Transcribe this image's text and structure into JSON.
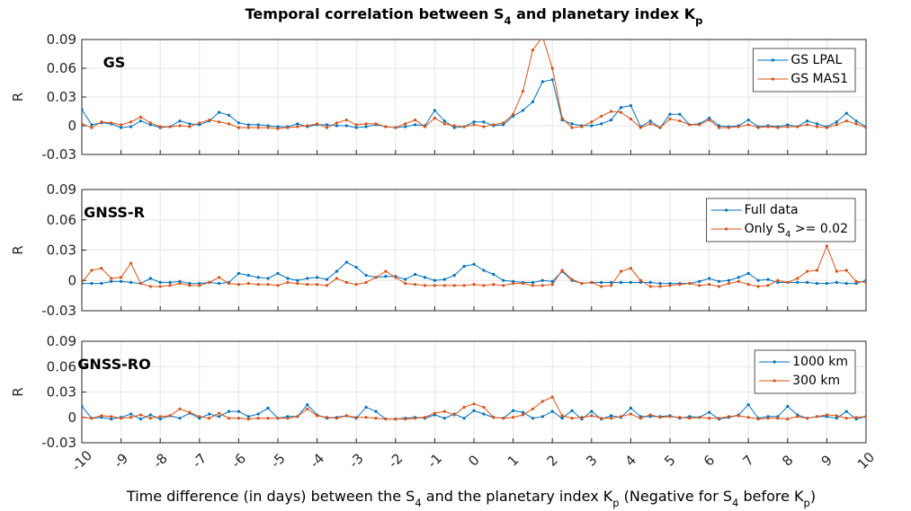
{
  "title": "Temporal correlation between S_4 and planetary index K_p",
  "xlabel": "Time difference (in days) between the S_4 and the planetary index K_p (Negative for S_4 before K_p)",
  "chart_data": [
    {
      "type": "line",
      "label": "GS",
      "ylabel": "R",
      "legend": "upper right",
      "grid": true,
      "xlim": [
        -10,
        10
      ],
      "ylim": [
        -0.03,
        0.09
      ],
      "xticks": [
        -10,
        -9,
        -8,
        -7,
        -6,
        -5,
        -4,
        -3,
        -2,
        -1,
        0,
        1,
        2,
        3,
        4,
        5,
        6,
        7,
        8,
        9,
        10
      ],
      "yticks": [
        -0.03,
        0,
        0.03,
        0.06,
        0.09
      ],
      "x": [
        -10,
        -9.75,
        -9.5,
        -9.25,
        -9,
        -8.75,
        -8.5,
        -8.25,
        -8,
        -7.75,
        -7.5,
        -7.25,
        -7,
        -6.75,
        -6.5,
        -6.25,
        -6,
        -5.75,
        -5.5,
        -5.25,
        -5,
        -4.75,
        -4.5,
        -4.25,
        -4,
        -3.75,
        -3.5,
        -3.25,
        -3,
        -2.75,
        -2.5,
        -2.25,
        -2,
        -1.75,
        -1.5,
        -1.25,
        -1,
        -0.75,
        -0.5,
        -0.25,
        0,
        0.25,
        0.5,
        0.75,
        1,
        1.25,
        1.5,
        1.75,
        2,
        2.25,
        2.5,
        2.75,
        3,
        3.25,
        3.5,
        3.75,
        4,
        4.25,
        4.5,
        4.75,
        5,
        5.25,
        5.5,
        5.75,
        6,
        6.25,
        6.5,
        6.75,
        7,
        7.25,
        7.5,
        7.75,
        8,
        8.25,
        8.5,
        8.75,
        9,
        9.25,
        9.5,
        9.75,
        10
      ],
      "series": [
        {
          "name": "GS LPAL",
          "color": "#0072BD",
          "values": [
            0.017,
            0.001,
            0.003,
            0.002,
            -0.002,
            -0.001,
            0.005,
            0.001,
            -0.002,
            -0.001,
            0.005,
            0.002,
            0.001,
            0.005,
            0.014,
            0.011,
            0.003,
            0.001,
            0.001,
            0,
            -0.001,
            -0.001,
            0.002,
            -0.001,
            0.001,
            0.001,
            0,
            0,
            -0.002,
            -0.001,
            0.001,
            -0.001,
            -0.002,
            -0.001,
            0.001,
            0,
            0.016,
            0.005,
            -0.002,
            -0.001,
            0.004,
            0.004,
            0,
            0.001,
            0.01,
            0.016,
            0.025,
            0.046,
            0.048,
            0.006,
            0.002,
            0,
            0,
            0.002,
            0.006,
            0.019,
            0.021,
            -0.001,
            0.005,
            -0.002,
            0.012,
            0.012,
            0.001,
            0.002,
            0.008,
            0,
            -0.001,
            0,
            0.006,
            -0.001,
            0,
            -0.001,
            0.001,
            -0.001,
            0.005,
            0.002,
            -0.001,
            0.004,
            0.013,
            0.005,
            -0.001
          ]
        },
        {
          "name": "GS MAS1",
          "color": "#D95319",
          "values": [
            0.002,
            -0.002,
            0.004,
            0.003,
            0.001,
            0.004,
            0.009,
            0.003,
            -0.001,
            -0.001,
            0,
            -0.001,
            0.003,
            0.006,
            0.004,
            0.002,
            -0.002,
            -0.002,
            -0.002,
            -0.002,
            -0.003,
            -0.002,
            -0.001,
            0,
            0.002,
            -0.002,
            0.003,
            0.006,
            0.001,
            0.002,
            0.002,
            -0.001,
            -0.002,
            0.002,
            0.006,
            -0.001,
            0.008,
            0.002,
            0,
            -0.001,
            0.001,
            -0.001,
            0.001,
            0.003,
            0.012,
            0.036,
            0.079,
            0.093,
            0.06,
            0.008,
            -0.002,
            -0.001,
            0.004,
            0.01,
            0.015,
            0.014,
            0.007,
            -0.002,
            0.002,
            -0.002,
            0.007,
            0.005,
            0.001,
            0.001,
            0.006,
            -0.002,
            -0.002,
            -0.001,
            0.001,
            -0.002,
            -0.001,
            -0.002,
            -0.001,
            -0.001,
            0.001,
            -0.001,
            -0.002,
            0.001,
            0.005,
            0.002,
            -0.002
          ]
        }
      ]
    },
    {
      "type": "line",
      "label": "GNSS-R",
      "ylabel": "R",
      "legend": "upper right",
      "grid": true,
      "xlim": [
        -10,
        10
      ],
      "ylim": [
        -0.03,
        0.09
      ],
      "xticks": [
        -10,
        -9,
        -8,
        -7,
        -6,
        -5,
        -4,
        -3,
        -2,
        -1,
        0,
        1,
        2,
        3,
        4,
        5,
        6,
        7,
        8,
        9,
        10
      ],
      "yticks": [
        -0.03,
        0,
        0.03,
        0.06,
        0.09
      ],
      "x": [
        -10,
        -9.75,
        -9.5,
        -9.25,
        -9,
        -8.75,
        -8.5,
        -8.25,
        -8,
        -7.75,
        -7.5,
        -7.25,
        -7,
        -6.75,
        -6.5,
        -6.25,
        -6,
        -5.75,
        -5.5,
        -5.25,
        -5,
        -4.75,
        -4.5,
        -4.25,
        -4,
        -3.75,
        -3.5,
        -3.25,
        -3,
        -2.75,
        -2.5,
        -2.25,
        -2,
        -1.75,
        -1.5,
        -1.25,
        -1,
        -0.75,
        -0.5,
        -0.25,
        0,
        0.25,
        0.5,
        0.75,
        1,
        1.25,
        1.5,
        1.75,
        2,
        2.25,
        2.5,
        2.75,
        3,
        3.25,
        3.5,
        3.75,
        4,
        4.25,
        4.5,
        4.75,
        5,
        5.25,
        5.5,
        5.75,
        6,
        6.25,
        6.5,
        6.75,
        7,
        7.25,
        7.5,
        7.75,
        8,
        8.25,
        8.5,
        8.75,
        9,
        9.25,
        9.5,
        9.75,
        10
      ],
      "series": [
        {
          "name": "Full data",
          "color": "#0072BD",
          "values": [
            -0.003,
            -0.003,
            -0.003,
            -0.001,
            -0.001,
            -0.002,
            -0.003,
            0.002,
            -0.002,
            -0.002,
            -0.001,
            -0.003,
            -0.003,
            -0.002,
            -0.003,
            -0.002,
            0.007,
            0.005,
            0.003,
            0.002,
            0.007,
            0.002,
            0,
            0.002,
            0.003,
            0.001,
            0.009,
            0.018,
            0.013,
            0.005,
            0.003,
            0.004,
            0.004,
            0.001,
            0.006,
            0.003,
            0,
            0.001,
            0.005,
            0.014,
            0.016,
            0.01,
            0.006,
            0,
            -0.001,
            -0.002,
            -0.002,
            0,
            -0.001,
            0.009,
            0,
            -0.003,
            -0.002,
            -0.002,
            -0.002,
            -0.002,
            -0.002,
            -0.002,
            -0.002,
            -0.003,
            -0.003,
            -0.003,
            -0.003,
            -0.001,
            0.002,
            -0.001,
            0,
            0.003,
            0.007,
            0,
            0.001,
            -0.002,
            -0.002,
            -0.002,
            -0.002,
            -0.003,
            -0.003,
            -0.002,
            -0.003,
            -0.003,
            0
          ]
        },
        {
          "name": "Only S_4 >= 0.02",
          "color": "#D95319",
          "values": [
            -0.002,
            0.01,
            0.012,
            0.002,
            0.003,
            0.017,
            -0.003,
            -0.006,
            -0.006,
            -0.005,
            -0.003,
            -0.005,
            -0.005,
            -0.002,
            0.003,
            -0.003,
            -0.004,
            -0.003,
            -0.004,
            -0.004,
            -0.005,
            -0.002,
            -0.003,
            -0.004,
            -0.004,
            -0.005,
            0.002,
            -0.002,
            -0.004,
            -0.002,
            0.003,
            0.009,
            0.003,
            -0.003,
            -0.004,
            -0.005,
            -0.005,
            -0.005,
            -0.005,
            -0.005,
            -0.004,
            -0.005,
            -0.004,
            -0.005,
            -0.003,
            -0.003,
            -0.005,
            -0.005,
            -0.004,
            0.01,
            0.001,
            -0.003,
            -0.002,
            -0.006,
            -0.005,
            0.009,
            0.012,
            0,
            -0.006,
            -0.006,
            -0.005,
            -0.004,
            -0.003,
            -0.005,
            -0.004,
            -0.006,
            -0.003,
            -0.001,
            -0.004,
            -0.006,
            -0.005,
            0,
            -0.002,
            0.002,
            0.009,
            0.01,
            0.034,
            0.009,
            0.01,
            -0.001,
            -0.002
          ]
        }
      ]
    },
    {
      "type": "line",
      "label": "GNSS-RO",
      "ylabel": "R",
      "legend": "upper right",
      "grid": true,
      "xlim": [
        -10,
        10
      ],
      "ylim": [
        -0.03,
        0.09
      ],
      "xticks": [
        -10,
        -9,
        -8,
        -7,
        -6,
        -5,
        -4,
        -3,
        -2,
        -1,
        0,
        1,
        2,
        3,
        4,
        5,
        6,
        7,
        8,
        9,
        10
      ],
      "yticks": [
        -0.03,
        0,
        0.03,
        0.06,
        0.09
      ],
      "x": [
        -10,
        -9.75,
        -9.5,
        -9.25,
        -9,
        -8.75,
        -8.5,
        -8.25,
        -8,
        -7.75,
        -7.5,
        -7.25,
        -7,
        -6.75,
        -6.5,
        -6.25,
        -6,
        -5.75,
        -5.5,
        -5.25,
        -5,
        -4.75,
        -4.5,
        -4.25,
        -4,
        -3.75,
        -3.5,
        -3.25,
        -3,
        -2.75,
        -2.5,
        -2.25,
        -2,
        -1.75,
        -1.5,
        -1.25,
        -1,
        -0.75,
        -0.5,
        -0.25,
        0,
        0.25,
        0.5,
        0.75,
        1,
        1.25,
        1.5,
        1.75,
        2,
        2.25,
        2.5,
        2.75,
        3,
        3.25,
        3.5,
        3.75,
        4,
        4.25,
        4.5,
        4.75,
        5,
        5.25,
        5.5,
        5.75,
        6,
        6.25,
        6.5,
        6.75,
        7,
        7.25,
        7.5,
        7.75,
        8,
        8.25,
        8.5,
        8.75,
        9,
        9.25,
        9.5,
        9.75,
        10
      ],
      "series": [
        {
          "name": "1000 km",
          "color": "#0072BD",
          "values": [
            0.013,
            -0.001,
            0,
            -0.002,
            0,
            0.004,
            -0.002,
            0.003,
            -0.002,
            0.002,
            -0.001,
            0.005,
            -0.001,
            0.004,
            0.001,
            0.007,
            0.007,
            0.001,
            0.004,
            0.011,
            -0.001,
            0.001,
            0.001,
            0.015,
            0.003,
            -0.001,
            0,
            0.002,
            -0.001,
            0.012,
            0.007,
            -0.002,
            -0.002,
            -0.001,
            0,
            -0.001,
            0.003,
            -0.001,
            0.004,
            -0.001,
            0.008,
            0.004,
            0,
            -0.001,
            0.008,
            0.006,
            -0.001,
            0.001,
            0.007,
            -0.001,
            0.008,
            -0.002,
            0.007,
            -0.002,
            0.002,
            0,
            0.011,
            0.001,
            0.001,
            0.001,
            0.002,
            -0.001,
            0.001,
            0,
            0.006,
            -0.002,
            0,
            0.003,
            0.015,
            -0.001,
            0.001,
            0.001,
            0.013,
            0.003,
            -0.001,
            0.001,
            0.001,
            -0.001,
            0.007,
            -0.002,
            0.001
          ]
        },
        {
          "name": "300 km",
          "color": "#D95319",
          "values": [
            0,
            -0.001,
            0.002,
            0.001,
            -0.001,
            0,
            0.003,
            -0.001,
            0.001,
            0.002,
            0.01,
            0.006,
            0.001,
            -0.001,
            0.005,
            -0.001,
            -0.001,
            -0.002,
            -0.001,
            -0.001,
            -0.001,
            -0.001,
            0.001,
            0.01,
            0.002,
            0,
            -0.001,
            0.002,
            0,
            0,
            -0.001,
            -0.002,
            -0.002,
            -0.002,
            -0.001,
            0,
            0.005,
            0.007,
            0.003,
            0.012,
            0.016,
            0.012,
            0,
            -0.001,
            0,
            0.003,
            0.01,
            0.019,
            0.024,
            0.002,
            -0.001,
            0,
            0.002,
            -0.001,
            -0.001,
            0.001,
            0.004,
            -0.001,
            0.003,
            0,
            0.001,
            0,
            -0.001,
            0,
            -0.001,
            -0.001,
            0.001,
            0.002,
            0,
            -0.002,
            -0.001,
            -0.001,
            -0.002,
            0.001,
            -0.001,
            0.001,
            0.003,
            0.002,
            -0.001,
            0,
            0.001
          ]
        }
      ]
    }
  ]
}
